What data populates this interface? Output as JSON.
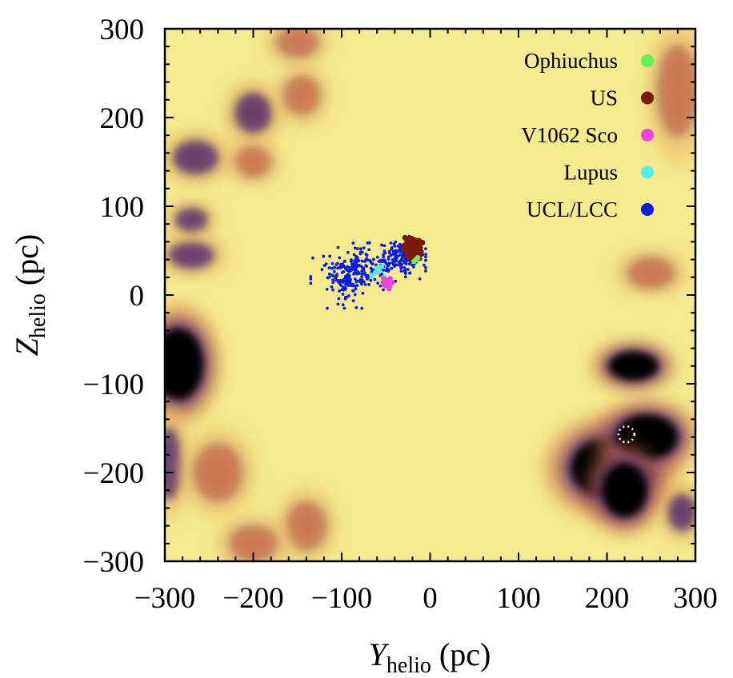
{
  "chart_data": {
    "type": "scatter",
    "title": "",
    "xlabel": {
      "main": "Y",
      "sub": "helio",
      "unit": " (pc)"
    },
    "ylabel": {
      "main": "Z",
      "sub": "helio",
      "unit": " (pc)"
    },
    "xlim": [
      -300,
      300
    ],
    "ylim": [
      -300,
      300
    ],
    "xticks": [
      -300,
      -200,
      -100,
      0,
      100,
      200,
      300
    ],
    "yticks": [
      -300,
      -200,
      -100,
      0,
      100,
      200,
      300
    ],
    "xtick_labels": [
      "−300",
      "−200",
      "−100",
      "0",
      "100",
      "200",
      "300"
    ],
    "ytick_labels": [
      "−300",
      "−200",
      "−100",
      "0",
      "100",
      "200",
      "300"
    ],
    "legend_position": "top-right",
    "background": {
      "type": "heatmap",
      "colormap": [
        "#000000",
        "#5a2d6e",
        "#d87a4a",
        "#f0b860",
        "#f4ea8e"
      ],
      "base_color": "#f4ea8e",
      "dense_regions": [
        {
          "center": [
            -285,
            -78
          ],
          "radius": [
            28,
            40
          ],
          "level": 1.0
        },
        {
          "center": [
            205,
            -195
          ],
          "radius": [
            45,
            35
          ],
          "level": 1.0
        },
        {
          "center": [
            245,
            -160
          ],
          "radius": [
            35,
            25
          ],
          "level": 1.0
        },
        {
          "center": [
            220,
            -220
          ],
          "radius": [
            25,
            30
          ],
          "level": 0.95
        },
        {
          "center": [
            230,
            -80
          ],
          "radius": [
            28,
            16
          ],
          "level": 0.9
        },
        {
          "center": [
            -265,
            155
          ],
          "radius": [
            25,
            18
          ],
          "level": 0.6
        },
        {
          "center": [
            -270,
            45
          ],
          "radius": [
            25,
            14
          ],
          "level": 0.55
        },
        {
          "center": [
            -270,
            85
          ],
          "radius": [
            18,
            12
          ],
          "level": 0.5
        },
        {
          "center": [
            -200,
            205
          ],
          "radius": [
            20,
            22
          ],
          "level": 0.5
        },
        {
          "center": [
            -200,
            150
          ],
          "radius": [
            18,
            15
          ],
          "level": 0.45
        },
        {
          "center": [
            -145,
            225
          ],
          "radius": [
            18,
            20
          ],
          "level": 0.4
        },
        {
          "center": [
            -150,
            285
          ],
          "radius": [
            22,
            15
          ],
          "level": 0.4
        },
        {
          "center": [
            280,
            230
          ],
          "radius": [
            20,
            50
          ],
          "level": 0.45
        },
        {
          "center": [
            285,
            -245
          ],
          "radius": [
            15,
            20
          ],
          "level": 0.8
        },
        {
          "center": [
            250,
            25
          ],
          "radius": [
            25,
            15
          ],
          "level": 0.45
        },
        {
          "center": [
            -295,
            -190
          ],
          "radius": [
            12,
            40
          ],
          "level": 0.5
        },
        {
          "center": [
            -240,
            -200
          ],
          "radius": [
            25,
            30
          ],
          "level": 0.45
        },
        {
          "center": [
            -140,
            -260
          ],
          "radius": [
            20,
            25
          ],
          "level": 0.4
        },
        {
          "center": [
            -200,
            -280
          ],
          "radius": [
            25,
            18
          ],
          "level": 0.35
        }
      ],
      "marked_region": {
        "center": [
          222,
          -157
        ],
        "radius": 9,
        "color": "#ffffff"
      }
    },
    "series": [
      {
        "name": "Ophiuchus",
        "color": "#66ee55",
        "points": [
          [
            -16,
            40
          ],
          [
            -18,
            38
          ],
          [
            -14,
            42
          ]
        ]
      },
      {
        "name": "US",
        "color": "#7a1a08",
        "cluster": {
          "center": [
            -20,
            53
          ],
          "spread": [
            5,
            6
          ],
          "count": 60
        }
      },
      {
        "name": "V1062 Sco",
        "color": "#ee44dd",
        "cluster": {
          "center": [
            -50,
            13
          ],
          "spread": [
            3,
            3
          ],
          "count": 18
        }
      },
      {
        "name": "Lupus",
        "color": "#55eeee",
        "points": [
          [
            -62,
            25
          ],
          [
            -58,
            28
          ],
          [
            -55,
            32
          ],
          [
            -66,
            22
          ],
          [
            -52,
            20
          ],
          [
            -60,
            30
          ]
        ]
      },
      {
        "name": "UCL/LCC",
        "color": "#0a1ee0",
        "cluster": {
          "center": [
            -75,
            30
          ],
          "spread": [
            40,
            18
          ],
          "count": 420,
          "extent_x": [
            -135,
            -5
          ],
          "extent_y": [
            -15,
            72
          ]
        }
      }
    ]
  }
}
